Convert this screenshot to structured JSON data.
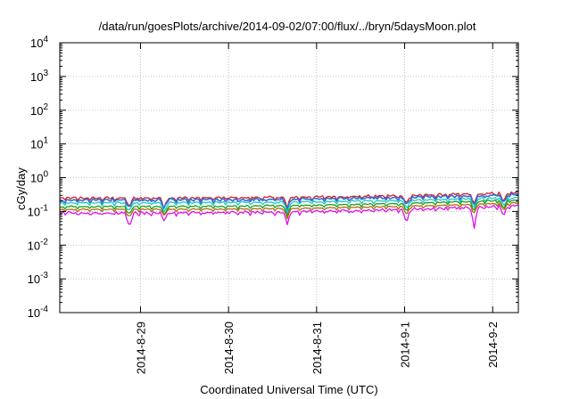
{
  "chart_data": {
    "type": "line",
    "title": "/data/run/goesPlots/archive/2014-09-02/07:00/flux/../bryn/5daysMoon.plot",
    "xlabel": "Coordinated Universal Time (UTC)",
    "ylabel": "cGy/day",
    "yscale": "log",
    "ylim_exp": [
      -4,
      4
    ],
    "y_tick_labels": [
      {
        "base": "10",
        "exp": "-4"
      },
      {
        "base": "10",
        "exp": "-3"
      },
      {
        "base": "10",
        "exp": "-2"
      },
      {
        "base": "10",
        "exp": "-1"
      },
      {
        "base": "10",
        "exp": "0"
      },
      {
        "base": "10",
        "exp": "1"
      },
      {
        "base": "10",
        "exp": "2"
      },
      {
        "base": "10",
        "exp": "3"
      },
      {
        "base": "10",
        "exp": "4"
      }
    ],
    "x_start": "2014-08-28T02:00",
    "x_end": "2014-09-02T07:00",
    "x_tick_labels": [
      "2014-8-29",
      "2014-8-30",
      "2014-8-31",
      "2014-9-1",
      "2014-9-2"
    ],
    "x_tick_dates": [
      "2014-08-29T00:00",
      "2014-08-30T00:00",
      "2014-08-31T00:00",
      "2014-09-01T00:00",
      "2014-09-02T00:00"
    ],
    "grid": true,
    "series": [
      {
        "color": "#d42020",
        "base": 0.25,
        "end": 0.36,
        "noise": 0.07
      },
      {
        "color": "#2a6fe0",
        "base": 0.22,
        "end": 0.32,
        "noise": 0.08
      },
      {
        "color": "#20c8c0",
        "base": 0.18,
        "end": 0.26,
        "noise": 0.05
      },
      {
        "color": "#18a018",
        "base": 0.14,
        "end": 0.22,
        "noise": 0.04
      },
      {
        "color": "#b06a10",
        "base": 0.115,
        "end": 0.18,
        "noise": 0.03
      },
      {
        "color": "#e010e8",
        "base": 0.09,
        "end": 0.15,
        "noise": 0.08
      }
    ],
    "dips": [
      {
        "at": "2014-08-28T21:00",
        "min": 0.03
      },
      {
        "at": "2014-08-29T06:30",
        "min": 0.05
      },
      {
        "at": "2014-08-30T16:00",
        "min": 0.04
      },
      {
        "at": "2014-09-01T00:30",
        "min": 0.04
      },
      {
        "at": "2014-09-01T19:00",
        "min": 0.03
      },
      {
        "at": "2014-09-02T03:00",
        "min": 0.07
      }
    ]
  }
}
